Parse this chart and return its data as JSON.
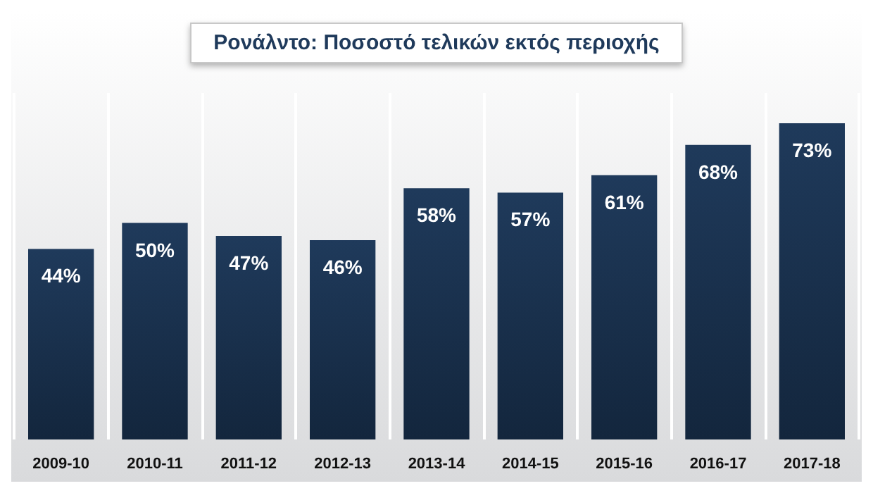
{
  "chart_data": {
    "type": "bar",
    "title": "Ρονάλντο: Ποσοστό τελικών εκτός περιοχής",
    "categories": [
      "2009-10",
      "2010-11",
      "2011-12",
      "2012-13",
      "2013-14",
      "2014-15",
      "2015-16",
      "2016-17",
      "2017-18"
    ],
    "values": [
      44,
      50,
      47,
      46,
      58,
      57,
      61,
      68,
      73
    ],
    "color": "#1f3a5b",
    "data_labels": true,
    "grid": "x",
    "value_labels": [
      "44%",
      "50%",
      "47%",
      "46%",
      "58%",
      "57%",
      "61%",
      "68%",
      "73%"
    ]
  }
}
